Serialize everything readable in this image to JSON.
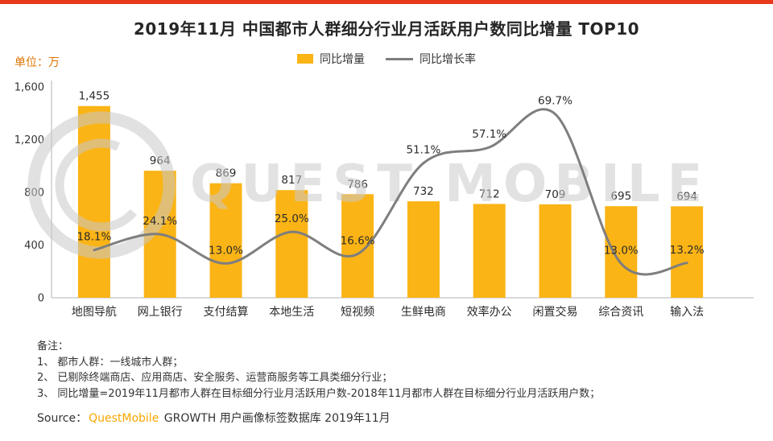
{
  "page": {
    "title": "2019年11月 中国都市人群细分行业月活跃用户数同比增量 TOP10",
    "unit_label": "单位：万",
    "accent_color": "#E8391D",
    "bar_color": "#FBB416",
    "line_color": "#7E7E7E",
    "unit_label_color": "#DD7500"
  },
  "legend": {
    "bar_label": "同比增量",
    "line_label": "同比增长率"
  },
  "chart_data": {
    "type": "bar+line",
    "title": "2019年11月 中国都市人群细分行业月活跃用户数同比增量 TOP10",
    "unit": "万",
    "legend_position": "top",
    "grid": false,
    "categories": [
      "地图导航",
      "网上银行",
      "支付结算",
      "本地生活",
      "短视频",
      "生鲜电商",
      "效率办公",
      "闲置交易",
      "综合资讯",
      "输入法"
    ],
    "series": [
      {
        "name": "同比增量",
        "type": "bar",
        "values": [
          1455,
          964,
          869,
          817,
          786,
          732,
          712,
          709,
          695,
          694
        ],
        "labels": [
          "1,455",
          "964",
          "869",
          "817",
          "786",
          "732",
          "712",
          "709",
          "695",
          "694"
        ]
      },
      {
        "name": "同比增长率",
        "type": "line",
        "values": [
          18.1,
          24.1,
          13.0,
          25.0,
          16.6,
          51.1,
          57.1,
          69.7,
          13.0,
          13.2
        ],
        "labels": [
          "18.1%",
          "24.1%",
          "13.0%",
          "25.0%",
          "16.6%",
          "51.1%",
          "57.1%",
          "69.7%",
          "13.0%",
          "13.2%"
        ]
      }
    ],
    "y_axis": {
      "min": 0,
      "max": 1600,
      "tick_values": [
        0,
        400,
        800,
        1200,
        1600
      ],
      "ticks": [
        "0",
        "400",
        "800",
        "1,200",
        "1,600"
      ]
    },
    "y2_axis": {
      "min": 0,
      "max": 80,
      "visible": false
    }
  },
  "watermark": {
    "text": "QUEST MOBILE"
  },
  "notes": {
    "heading": "备注：",
    "items": [
      "1、 都市人群：一线城市人群；",
      "2、 已剔除终端商店、应用商店、安全服务、运营商服务等工具类细分行业；",
      "3、 同比增量=2019年11月都市人群在目标细分行业月活跃用户数-2018年11月都市人群在目标细分行业月活跃用户数；"
    ]
  },
  "source": {
    "prefix": "Source：",
    "brand": "QuestMobile",
    "suffix": " GROWTH 用户画像标签数据库  2019年11月"
  }
}
